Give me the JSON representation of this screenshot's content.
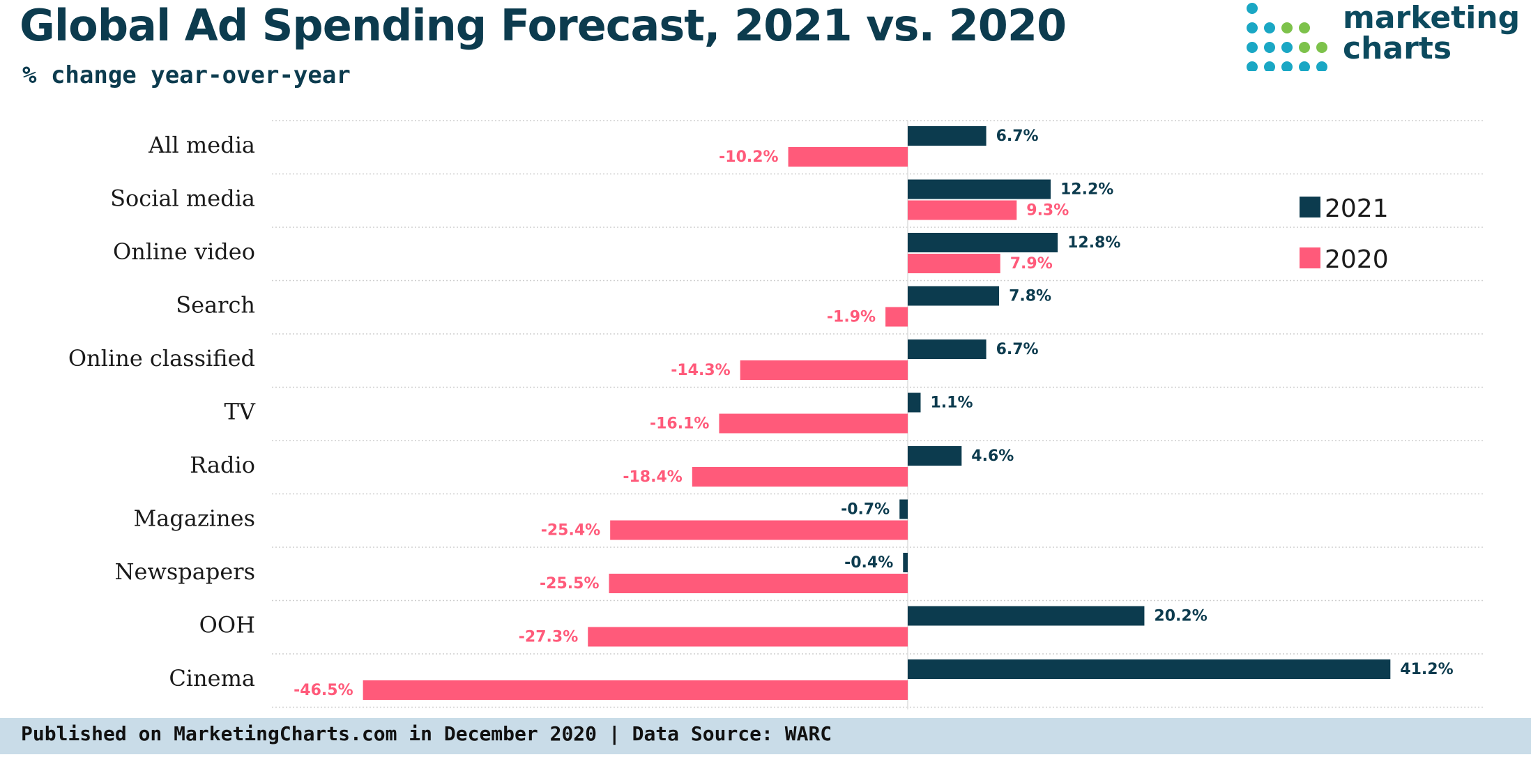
{
  "header": {
    "title": "Global Ad Spending Forecast, 2021 vs. 2020",
    "subtitle": "% change year-over-year"
  },
  "logo": {
    "line1": "marketing",
    "line2": "charts",
    "dot_colors": [
      "#1aa7c4",
      "#7dc24b",
      "#0c4a5e"
    ]
  },
  "footer": {
    "text": "Published on MarketingCharts.com in December 2020 | Data Source: WARC"
  },
  "chart_data": {
    "type": "bar",
    "orientation": "horizontal",
    "title": "Global Ad Spending Forecast, 2021 vs. 2020",
    "subtitle": "% change year-over-year",
    "categories": [
      "All media",
      "Social media",
      "Online video",
      "Search",
      "Online classified",
      "TV",
      "Radio",
      "Magazines",
      "Newspapers",
      "OOH",
      "Cinema"
    ],
    "series": [
      {
        "name": "2021",
        "color": "#0c3b4e",
        "values": [
          6.7,
          12.2,
          12.8,
          7.8,
          6.7,
          1.1,
          4.6,
          -0.7,
          -0.4,
          20.2,
          41.2
        ],
        "labels": [
          "6.7%",
          "12.2%",
          "12.8%",
          "7.8%",
          "6.7%",
          "1.1%",
          "4.6%",
          "-0.7%",
          "-0.4%",
          "20.2%",
          "41.2%"
        ]
      },
      {
        "name": "2020",
        "color": "#ff5a7a",
        "values": [
          -10.2,
          9.3,
          7.9,
          -1.9,
          -14.3,
          -16.1,
          -18.4,
          -25.4,
          -25.5,
          -27.3,
          -46.5
        ],
        "labels": [
          "-10.2%",
          "9.3%",
          "7.9%",
          "-1.9%",
          "-14.3%",
          "-16.1%",
          "-18.4%",
          "-25.4%",
          "-25.5%",
          "-27.3%",
          "-46.5%"
        ]
      }
    ],
    "xlim": [
      -55,
      50
    ],
    "grid": true,
    "legend": "right"
  }
}
